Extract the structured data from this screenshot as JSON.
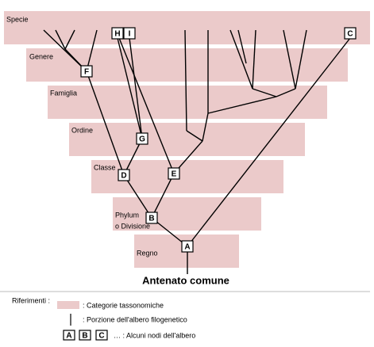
{
  "bands": [
    {
      "label": "Specie"
    },
    {
      "label": "Genere"
    },
    {
      "label": "Famiglia"
    },
    {
      "label": "Ordine"
    },
    {
      "label": "Classe"
    },
    {
      "label": "Phylum",
      "label2": "o Divisione"
    },
    {
      "label": "Regno"
    }
  ],
  "nodes": {
    "A": "A",
    "B": "B",
    "C": "C",
    "D": "D",
    "E": "E",
    "F": "F",
    "G": "G",
    "H": "H",
    "I": "I"
  },
  "root": "Antenato comune",
  "legend": {
    "title": "Riferimenti :",
    "items": [
      ": Categorie tassonomiche",
      ": Porzione dell'albero filogenetico",
      "… : Alcuni nodi dell'albero"
    ],
    "nodes": [
      "A",
      "B",
      "C"
    ]
  }
}
